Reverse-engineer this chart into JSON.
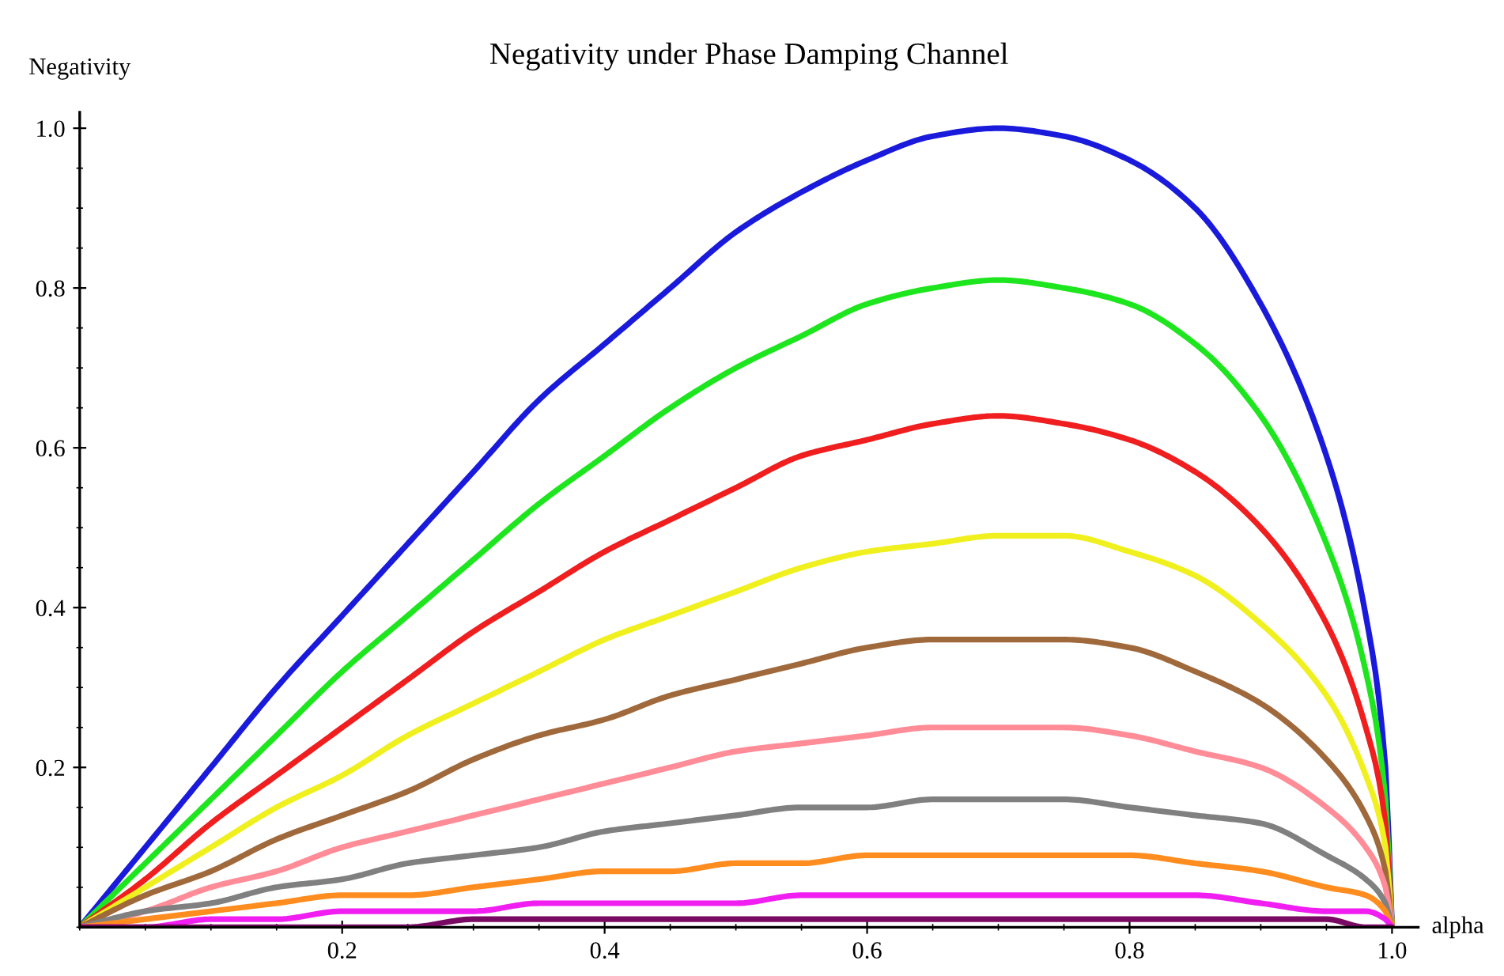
{
  "chart_data": {
    "type": "line",
    "title": "Negativity under Phase Damping Channel",
    "xlabel": "alpha",
    "ylabel": "Negativity",
    "x": [
      0,
      0.05,
      0.1,
      0.15,
      0.2,
      0.25,
      0.3,
      0.35,
      0.4,
      0.45,
      0.5,
      0.55,
      0.6,
      0.65,
      0.7,
      0.75,
      0.8,
      0.85,
      0.9,
      0.95,
      0.98,
      0.995,
      1.0
    ],
    "series": [
      {
        "color": "#1a1adc",
        "values": [
          0,
          0.1,
          0.2,
          0.3,
          0.39,
          0.48,
          0.57,
          0.66,
          0.73,
          0.8,
          0.87,
          0.92,
          0.96,
          0.99,
          1.0,
          0.99,
          0.96,
          0.9,
          0.78,
          0.59,
          0.39,
          0.2,
          0
        ]
      },
      {
        "color": "#1ee61e",
        "values": [
          0,
          0.08,
          0.16,
          0.24,
          0.32,
          0.39,
          0.46,
          0.53,
          0.59,
          0.65,
          0.7,
          0.74,
          0.78,
          0.8,
          0.81,
          0.8,
          0.78,
          0.73,
          0.64,
          0.48,
          0.32,
          0.16,
          0
        ]
      },
      {
        "color": "#f01e1e",
        "values": [
          0,
          0.06,
          0.13,
          0.19,
          0.25,
          0.31,
          0.37,
          0.42,
          0.47,
          0.51,
          0.55,
          0.59,
          0.61,
          0.63,
          0.64,
          0.63,
          0.61,
          0.57,
          0.5,
          0.38,
          0.25,
          0.13,
          0
        ]
      },
      {
        "color": "#f0f01e",
        "values": [
          0,
          0.05,
          0.1,
          0.15,
          0.19,
          0.24,
          0.28,
          0.32,
          0.36,
          0.39,
          0.42,
          0.45,
          0.47,
          0.48,
          0.49,
          0.49,
          0.47,
          0.44,
          0.38,
          0.29,
          0.19,
          0.1,
          0
        ]
      },
      {
        "color": "#a0693c",
        "values": [
          0,
          0.04,
          0.07,
          0.11,
          0.14,
          0.17,
          0.21,
          0.24,
          0.26,
          0.29,
          0.31,
          0.33,
          0.35,
          0.36,
          0.36,
          0.36,
          0.35,
          0.32,
          0.28,
          0.21,
          0.14,
          0.07,
          0
        ]
      },
      {
        "color": "#ff8c96",
        "values": [
          0,
          0.02,
          0.05,
          0.07,
          0.1,
          0.12,
          0.14,
          0.16,
          0.18,
          0.2,
          0.22,
          0.23,
          0.24,
          0.25,
          0.25,
          0.25,
          0.24,
          0.22,
          0.2,
          0.15,
          0.1,
          0.05,
          0
        ]
      },
      {
        "color": "#808080",
        "values": [
          0,
          0.02,
          0.03,
          0.05,
          0.06,
          0.08,
          0.09,
          0.1,
          0.12,
          0.13,
          0.14,
          0.15,
          0.15,
          0.16,
          0.16,
          0.16,
          0.15,
          0.14,
          0.13,
          0.09,
          0.06,
          0.03,
          0
        ]
      },
      {
        "color": "#ff8c1e",
        "values": [
          0,
          0.01,
          0.02,
          0.03,
          0.04,
          0.04,
          0.05,
          0.06,
          0.07,
          0.07,
          0.08,
          0.08,
          0.09,
          0.09,
          0.09,
          0.09,
          0.09,
          0.08,
          0.07,
          0.05,
          0.04,
          0.02,
          0
        ]
      },
      {
        "color": "#f01ef0",
        "values": [
          0,
          0,
          0.01,
          0.01,
          0.02,
          0.02,
          0.02,
          0.03,
          0.03,
          0.03,
          0.03,
          0.04,
          0.04,
          0.04,
          0.04,
          0.04,
          0.04,
          0.04,
          0.03,
          0.02,
          0.02,
          0.01,
          0
        ]
      },
      {
        "color": "#780a64",
        "values": [
          0,
          0,
          0,
          0,
          0,
          0,
          0.01,
          0.01,
          0.01,
          0.01,
          0.01,
          0.01,
          0.01,
          0.01,
          0.01,
          0.01,
          0.01,
          0.01,
          0.01,
          0.01,
          0,
          0,
          0
        ]
      }
    ],
    "xlim": [
      0,
      1.02
    ],
    "ylim": [
      0,
      1.02
    ],
    "xticks": [
      0.2,
      0.4,
      0.6,
      0.8,
      {
        "value": 1,
        "label": "1.0"
      }
    ],
    "yticks": [
      0.2,
      0.4,
      0.6,
      0.8,
      {
        "value": 1,
        "label": "1.0"
      }
    ],
    "grid": false,
    "legend": false,
    "marker": "none",
    "line_style": "solid"
  }
}
